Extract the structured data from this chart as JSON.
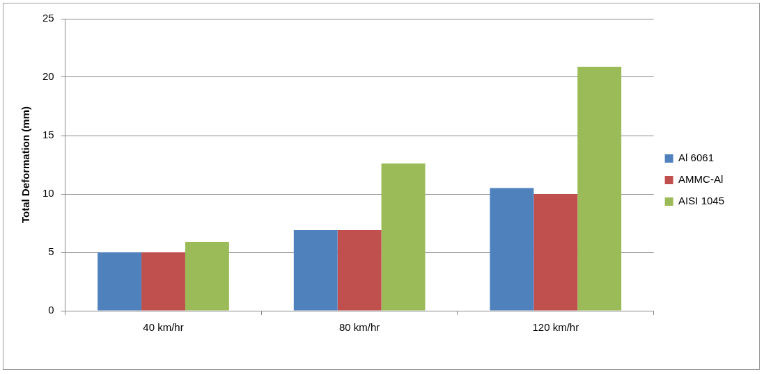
{
  "chart_data": {
    "type": "bar",
    "ylabel": "Total Deformation (mm)",
    "categories": [
      "40 km/hr",
      "80 km/hr",
      "120 km/hr"
    ],
    "series": [
      {
        "name": "Al 6061",
        "color": "#4f81bd",
        "values": [
          5.0,
          6.9,
          10.5
        ]
      },
      {
        "name": "AMMC-Al",
        "color": "#c0504d",
        "values": [
          5.0,
          6.9,
          10.0
        ]
      },
      {
        "name": "AISI 1045",
        "color": "#9bbb59",
        "values": [
          5.9,
          12.6,
          20.9
        ]
      }
    ],
    "ylim": [
      0,
      25
    ],
    "yticks": [
      0,
      5,
      10,
      15,
      20,
      25
    ],
    "grid": "y",
    "legend": "right"
  }
}
